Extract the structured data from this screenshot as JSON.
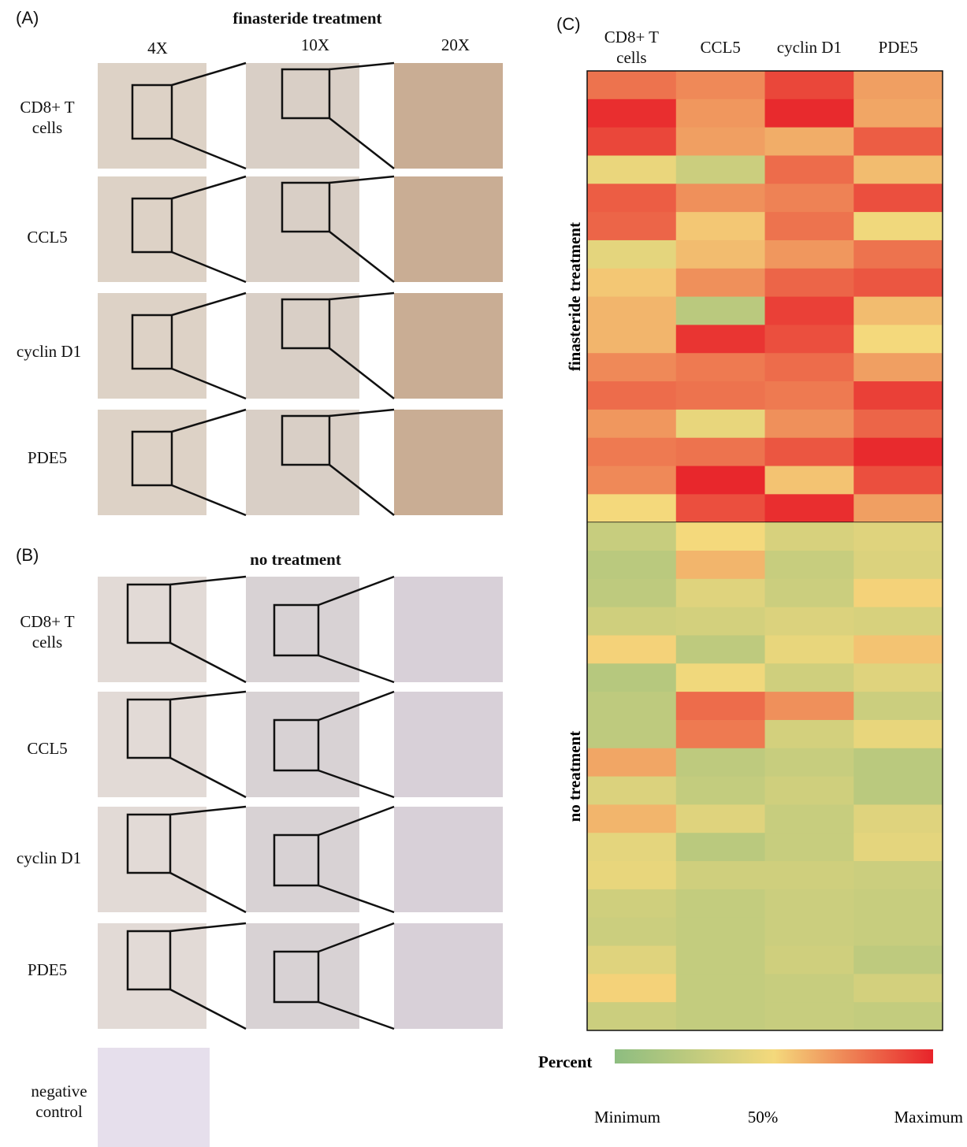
{
  "panel_a": {
    "letter": "(A)",
    "title": "finasteride treatment",
    "magnifications": [
      "4X",
      "10X",
      "20X"
    ],
    "rows": [
      "CD8+ T cells",
      "CCL5",
      "cyclin D1",
      "PDE5"
    ]
  },
  "panel_b": {
    "letter": "(B)",
    "title": "no treatment",
    "rows": [
      "CD8+ T cells",
      "CCL5",
      "cyclin D1",
      "PDE5"
    ],
    "control": "negative control"
  },
  "chart_data": {
    "type": "heatmap",
    "letter": "(C)",
    "categories": [
      "CD8+ T cells",
      "CCL5",
      "cyclin D1",
      "PDE5"
    ],
    "groups": [
      {
        "name": "finasteride treatment",
        "values": [
          [
            78,
            72,
            90,
            66
          ],
          [
            97,
            68,
            98,
            64
          ],
          [
            90,
            66,
            62,
            84
          ],
          [
            45,
            30,
            80,
            58
          ],
          [
            84,
            70,
            74,
            88
          ],
          [
            82,
            55,
            78,
            48
          ],
          [
            42,
            58,
            68,
            78
          ],
          [
            55,
            70,
            82,
            86
          ],
          [
            60,
            22,
            92,
            58
          ],
          [
            60,
            95,
            88,
            50
          ],
          [
            72,
            76,
            80,
            66
          ],
          [
            80,
            78,
            76,
            92
          ],
          [
            68,
            44,
            70,
            82
          ],
          [
            76,
            78,
            86,
            98
          ],
          [
            72,
            99,
            56,
            88
          ],
          [
            50,
            88,
            97,
            66
          ]
        ]
      },
      {
        "name": "no treatment",
        "values": [
          [
            28,
            50,
            36,
            40
          ],
          [
            22,
            60,
            28,
            38
          ],
          [
            24,
            40,
            30,
            52
          ],
          [
            32,
            34,
            38,
            36
          ],
          [
            52,
            24,
            44,
            56
          ],
          [
            20,
            48,
            32,
            40
          ],
          [
            24,
            80,
            70,
            30
          ],
          [
            24,
            76,
            34,
            44
          ],
          [
            64,
            24,
            28,
            22
          ],
          [
            38,
            26,
            32,
            22
          ],
          [
            60,
            40,
            28,
            40
          ],
          [
            42,
            22,
            28,
            42
          ],
          [
            44,
            32,
            32,
            30
          ],
          [
            32,
            26,
            30,
            28
          ],
          [
            30,
            26,
            30,
            28
          ],
          [
            40,
            26,
            32,
            24
          ],
          [
            52,
            26,
            28,
            34
          ],
          [
            30,
            26,
            28,
            26
          ]
        ]
      }
    ],
    "colorbar": {
      "title": "Percent",
      "zlim": [
        0,
        100
      ],
      "colors": [
        "#8dbd80",
        "#f4d97c",
        "#e8232a"
      ],
      "ticks": [
        {
          "value": 0,
          "label": "Minimum"
        },
        {
          "value": 50,
          "label": "50%"
        },
        {
          "value": 100,
          "label": "Maximum"
        }
      ]
    }
  }
}
